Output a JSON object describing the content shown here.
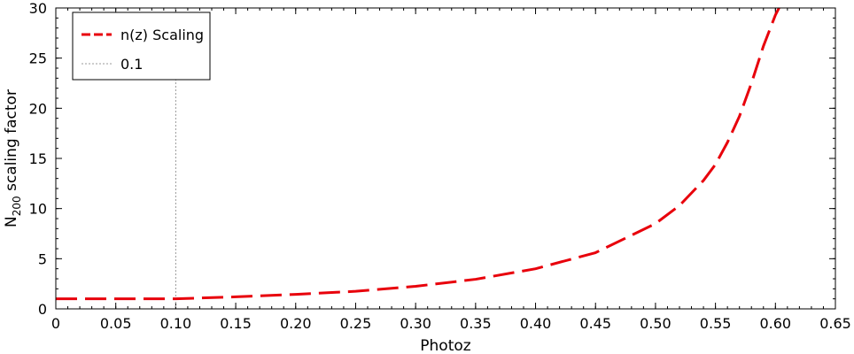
{
  "chart_data": {
    "type": "line",
    "xlabel": "Photoz",
    "ylabel_main": "N",
    "ylabel_sub": "200",
    "ylabel_rest": " scaling factor",
    "xlim": [
      0,
      0.65
    ],
    "ylim": [
      0,
      30
    ],
    "xticks": [
      0,
      0.05,
      0.1,
      0.15,
      0.2,
      0.25,
      0.3,
      0.35,
      0.4,
      0.45,
      0.5,
      0.55,
      0.6,
      0.65
    ],
    "xtick_labels": [
      "0",
      "0.05",
      "0.10",
      "0.15",
      "0.20",
      "0.25",
      "0.30",
      "0.35",
      "0.40",
      "0.45",
      "0.50",
      "0.55",
      "0.60",
      "0.65"
    ],
    "yticks": [
      0,
      5,
      10,
      15,
      20,
      25,
      30
    ],
    "ytick_labels": [
      "0",
      "5",
      "10",
      "15",
      "20",
      "25",
      "30"
    ],
    "grid": false,
    "legend_position": "top-left",
    "series": [
      {
        "name": "n(z) Scaling",
        "color": "#e8000b",
        "style": "dashed",
        "x": [
          0.0,
          0.05,
          0.1,
          0.15,
          0.2,
          0.25,
          0.3,
          0.35,
          0.4,
          0.45,
          0.5,
          0.52,
          0.54,
          0.55,
          0.56,
          0.57,
          0.58,
          0.59,
          0.6,
          0.603
        ],
        "y": [
          1.0,
          1.0,
          1.0,
          1.2,
          1.45,
          1.75,
          2.25,
          2.95,
          4.0,
          5.6,
          8.5,
          10.3,
          12.8,
          14.4,
          16.6,
          19.2,
          22.5,
          26.2,
          29.3,
          30.0
        ]
      }
    ],
    "reference_lines": [
      {
        "name": "0.1",
        "orientation": "vertical",
        "x": 0.1,
        "color": "#999999",
        "style": "dotted"
      }
    ]
  }
}
